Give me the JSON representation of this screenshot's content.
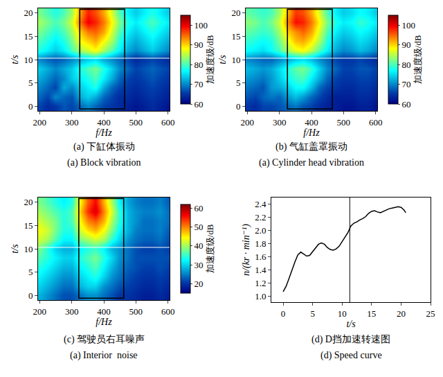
{
  "chart_data": [
    {
      "type": "heatmap",
      "caption": [
        "(a) 下缸体振动",
        "(a) Block vibration"
      ],
      "x_label": "f/Hz",
      "y_label": "t/s",
      "colorbar_label": "加速度级/dB",
      "color": "jet",
      "x": [
        200,
        225,
        250,
        275,
        300,
        325,
        350,
        375,
        400,
        425,
        450,
        475,
        500,
        525,
        550,
        575,
        600
      ],
      "y": [
        0,
        2,
        4,
        6,
        8,
        10,
        12,
        14,
        16,
        18,
        20
      ],
      "z": [
        [
          66,
          64,
          65,
          67,
          66,
          68,
          70,
          68,
          66,
          65,
          64,
          63,
          62,
          63,
          64,
          63,
          62
        ],
        [
          68,
          66,
          70,
          68,
          67,
          72,
          74,
          72,
          68,
          66,
          64,
          64,
          63,
          64,
          65,
          64,
          63
        ],
        [
          70,
          68,
          66,
          72,
          70,
          74,
          76,
          78,
          72,
          68,
          66,
          65,
          64,
          65,
          66,
          65,
          64
        ],
        [
          72,
          70,
          68,
          70,
          74,
          76,
          78,
          80,
          76,
          72,
          68,
          66,
          65,
          66,
          67,
          66,
          65
        ],
        [
          74,
          72,
          70,
          72,
          74,
          78,
          80,
          82,
          78,
          74,
          70,
          68,
          66,
          67,
          68,
          67,
          66
        ],
        [
          70,
          68,
          67,
          68,
          70,
          72,
          74,
          75,
          72,
          70,
          68,
          66,
          64,
          65,
          66,
          65,
          64
        ],
        [
          78,
          76,
          74,
          76,
          80,
          84,
          86,
          88,
          84,
          80,
          76,
          72,
          70,
          72,
          74,
          72,
          70
        ],
        [
          80,
          78,
          76,
          78,
          82,
          88,
          90,
          92,
          88,
          84,
          78,
          74,
          72,
          74,
          76,
          74,
          72
        ],
        [
          82,
          80,
          78,
          80,
          84,
          90,
          94,
          95,
          92,
          86,
          80,
          76,
          74,
          76,
          78,
          76,
          74
        ],
        [
          84,
          82,
          80,
          82,
          86,
          94,
          100,
          98,
          94,
          88,
          82,
          78,
          76,
          78,
          80,
          78,
          76
        ],
        [
          82,
          80,
          78,
          80,
          84,
          92,
          98,
          96,
          92,
          86,
          80,
          76,
          74,
          76,
          78,
          76,
          74
        ]
      ],
      "xlim": [
        195,
        605
      ],
      "xticks": [
        200,
        300,
        400,
        500,
        600
      ],
      "ylim": [
        -1,
        21
      ],
      "yticks": [
        0,
        5,
        10,
        15,
        20
      ],
      "zlim": [
        60,
        105
      ],
      "zticks": [
        60,
        70,
        80,
        90,
        100
      ],
      "box_f": [
        325,
        465
      ],
      "box_t": [
        -0.6,
        20.8
      ],
      "line_t": 10.3
    },
    {
      "type": "heatmap",
      "caption": [
        "(b) 气缸盖罩振动",
        "(a) Cylinder head vibration"
      ],
      "x_label": "f/Hz",
      "y_label": "t/s",
      "colorbar_label": "加速度级/dB",
      "color": "jet",
      "x": [
        200,
        225,
        250,
        275,
        300,
        325,
        350,
        375,
        400,
        425,
        450,
        475,
        500,
        525,
        550,
        575,
        600
      ],
      "y": [
        0,
        2,
        4,
        6,
        8,
        10,
        12,
        14,
        16,
        18,
        20
      ],
      "z": [
        [
          65,
          64,
          66,
          66,
          67,
          68,
          69,
          67,
          66,
          64,
          63,
          63,
          62,
          62,
          63,
          63,
          62
        ],
        [
          67,
          66,
          68,
          69,
          68,
          71,
          73,
          71,
          68,
          66,
          64,
          63,
          63,
          63,
          64,
          64,
          63
        ],
        [
          69,
          68,
          67,
          71,
          72,
          74,
          77,
          77,
          73,
          68,
          66,
          65,
          64,
          64,
          65,
          65,
          64
        ],
        [
          71,
          70,
          69,
          71,
          74,
          77,
          79,
          80,
          76,
          72,
          68,
          66,
          65,
          65,
          66,
          66,
          65
        ],
        [
          73,
          72,
          71,
          72,
          75,
          78,
          81,
          82,
          79,
          74,
          70,
          68,
          66,
          66,
          67,
          67,
          66
        ],
        [
          70,
          69,
          68,
          68,
          70,
          72,
          74,
          75,
          73,
          70,
          68,
          66,
          65,
          65,
          66,
          65,
          64
        ],
        [
          77,
          76,
          75,
          77,
          80,
          84,
          87,
          88,
          85,
          80,
          76,
          72,
          70,
          71,
          73,
          72,
          70
        ],
        [
          79,
          78,
          77,
          78,
          82,
          87,
          91,
          92,
          89,
          84,
          78,
          74,
          72,
          73,
          75,
          74,
          72
        ],
        [
          81,
          80,
          79,
          80,
          84,
          90,
          93,
          95,
          92,
          86,
          80,
          76,
          74,
          75,
          77,
          76,
          74
        ],
        [
          83,
          82,
          80,
          82,
          86,
          93,
          99,
          98,
          94,
          88,
          82,
          78,
          76,
          77,
          79,
          78,
          76
        ],
        [
          81,
          80,
          79,
          80,
          84,
          91,
          97,
          96,
          92,
          86,
          80,
          76,
          74,
          75,
          77,
          76,
          74
        ]
      ],
      "xlim": [
        195,
        605
      ],
      "xticks": [
        200,
        300,
        400,
        500,
        600
      ],
      "ylim": [
        -1,
        21
      ],
      "yticks": [
        0,
        5,
        10,
        15,
        20
      ],
      "zlim": [
        60,
        105
      ],
      "zticks": [
        60,
        70,
        80,
        90,
        100
      ],
      "box_f": [
        325,
        465
      ],
      "box_t": [
        -0.6,
        20.8
      ],
      "line_t": 10.3
    },
    {
      "type": "heatmap",
      "caption": [
        "(c) 驾驶员右耳噪声",
        "(a) Interior  noise"
      ],
      "x_label": "f/Hz",
      "y_label": "t/s",
      "colorbar_label": "加速度级/dB",
      "color": "jet",
      "x": [
        200,
        225,
        250,
        275,
        300,
        325,
        350,
        375,
        400,
        425,
        450,
        475,
        500,
        525,
        550,
        575,
        600
      ],
      "y": [
        0,
        2,
        4,
        6,
        8,
        10,
        12,
        14,
        16,
        18,
        20
      ],
      "z": [
        [
          28,
          26,
          24,
          22,
          22,
          24,
          26,
          26,
          24,
          22,
          20,
          20,
          19,
          18,
          18,
          19,
          18
        ],
        [
          30,
          28,
          26,
          24,
          24,
          28,
          30,
          30,
          26,
          24,
          22,
          21,
          20,
          19,
          19,
          20,
          19
        ],
        [
          32,
          30,
          28,
          26,
          26,
          30,
          32,
          34,
          30,
          26,
          24,
          22,
          21,
          20,
          20,
          21,
          20
        ],
        [
          34,
          32,
          30,
          28,
          28,
          32,
          34,
          36,
          32,
          28,
          25,
          23,
          22,
          21,
          21,
          22,
          21
        ],
        [
          36,
          34,
          32,
          30,
          30,
          34,
          36,
          38,
          34,
          30,
          26,
          24,
          22,
          22,
          22,
          22,
          22
        ],
        [
          38,
          34,
          30,
          28,
          28,
          32,
          34,
          35,
          32,
          28,
          26,
          24,
          22,
          21,
          21,
          22,
          21
        ],
        [
          42,
          40,
          36,
          32,
          32,
          38,
          40,
          42,
          40,
          34,
          30,
          26,
          24,
          23,
          23,
          24,
          22
        ],
        [
          44,
          42,
          38,
          34,
          34,
          42,
          46,
          48,
          44,
          38,
          32,
          28,
          25,
          24,
          24,
          25,
          23
        ],
        [
          42,
          40,
          38,
          34,
          36,
          44,
          50,
          52,
          48,
          40,
          34,
          28,
          26,
          24,
          24,
          25,
          24
        ],
        [
          40,
          38,
          36,
          34,
          36,
          46,
          54,
          58,
          50,
          42,
          34,
          28,
          26,
          25,
          25,
          26,
          24
        ],
        [
          38,
          36,
          34,
          32,
          34,
          44,
          52,
          56,
          48,
          40,
          32,
          27,
          25,
          24,
          24,
          25,
          23
        ]
      ],
      "xlim": [
        195,
        605
      ],
      "xticks": [
        200,
        300,
        400,
        500,
        600
      ],
      "ylim": [
        -1,
        21
      ],
      "yticks": [
        0,
        5,
        10,
        15,
        20
      ],
      "zlim": [
        15,
        62
      ],
      "zticks": [
        20,
        30,
        40,
        50,
        60
      ],
      "box_f": [
        322,
        462
      ],
      "box_t": [
        -0.6,
        20.8
      ],
      "line_t": 10.3
    },
    {
      "type": "line",
      "caption": [
        "(d) D挡加速转速图",
        "(d) Speed curve"
      ],
      "x_label": "t/s",
      "y_label": "n/(kr · min⁻¹)",
      "color": "#000000",
      "x": [
        0,
        0.5,
        1,
        1.5,
        2,
        2.5,
        3,
        3.5,
        4,
        4.5,
        5,
        5.5,
        6,
        6.5,
        7,
        7.5,
        8,
        8.5,
        9,
        9.5,
        10,
        10.5,
        11,
        11.5,
        12,
        12.5,
        13,
        13.5,
        14,
        14.5,
        15,
        15.5,
        16,
        16.5,
        17,
        17.5,
        18,
        18.5,
        19,
        19.5,
        20,
        20.5,
        20.8
      ],
      "values": [
        1.07,
        1.15,
        1.27,
        1.4,
        1.52,
        1.63,
        1.67,
        1.64,
        1.61,
        1.62,
        1.68,
        1.74,
        1.79,
        1.81,
        1.79,
        1.74,
        1.71,
        1.7,
        1.72,
        1.76,
        1.83,
        1.9,
        1.97,
        2.07,
        2.11,
        2.13,
        2.16,
        2.18,
        2.21,
        2.26,
        2.29,
        2.3,
        2.28,
        2.27,
        2.29,
        2.31,
        2.33,
        2.34,
        2.35,
        2.36,
        2.35,
        2.31,
        2.27
      ],
      "xlim": [
        -2,
        25
      ],
      "xticks": [
        0,
        5,
        10,
        15,
        20,
        25
      ],
      "ylim": [
        0.91,
        2.5
      ],
      "yticks": [
        {
          "value": 1,
          "label": "1.0"
        },
        1.2,
        1.4,
        1.6,
        1.8,
        {
          "value": 2,
          "label": "2.0"
        },
        2.2,
        2.4
      ],
      "line_t": 11.3
    }
  ]
}
